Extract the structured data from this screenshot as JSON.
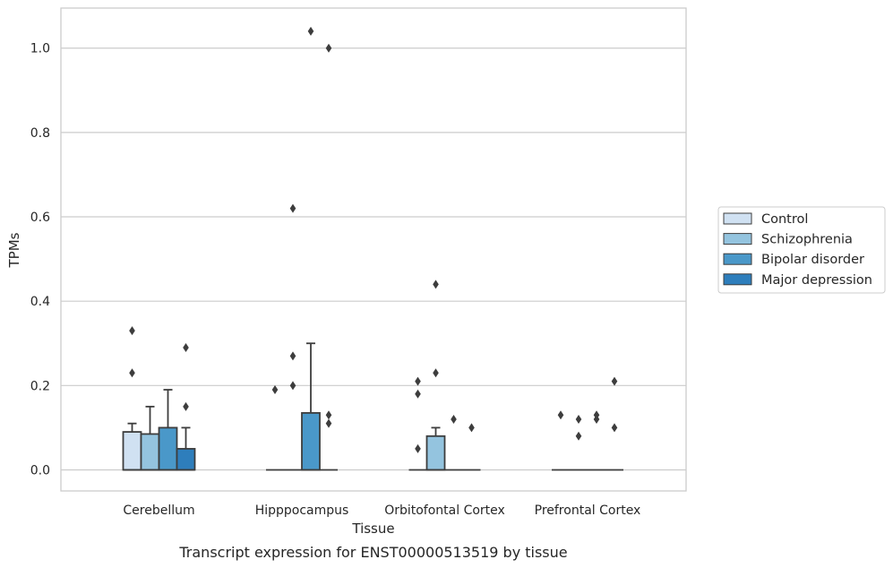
{
  "chart_data": {
    "type": "box",
    "title": "",
    "caption": "Transcript expression for ENST00000513519 by tissue",
    "xlabel": "Tissue",
    "ylabel": "TPMs",
    "ylim": [
      -0.05,
      1.095
    ],
    "yticks": [
      0.0,
      0.2,
      0.4,
      0.6,
      0.8,
      1.0
    ],
    "ytick_labels": [
      "0.0",
      "0.2",
      "0.4",
      "0.6",
      "0.8",
      "1.0"
    ],
    "grid": "horizontal",
    "legend_position": "right",
    "categories": [
      "Cerebellum",
      "Hipppocampus",
      "Orbitofontal Cortex",
      "Prefrontal Cortex"
    ],
    "series": [
      {
        "name": "Control",
        "color": "#d0e1f2",
        "boxes": [
          {
            "q1": 0.0,
            "median": 0.0,
            "q3": 0.09,
            "whisker_low": 0.0,
            "whisker_high": 0.11,
            "outliers": [
              0.23,
              0.33
            ]
          },
          {
            "q1": 0.0,
            "median": 0.0,
            "q3": 0.0,
            "whisker_low": 0.0,
            "whisker_high": 0.0,
            "outliers": [
              0.19
            ]
          },
          {
            "q1": 0.0,
            "median": 0.0,
            "q3": 0.0,
            "whisker_low": 0.0,
            "whisker_high": 0.0,
            "outliers": [
              0.05,
              0.18,
              0.21
            ]
          },
          {
            "q1": 0.0,
            "median": 0.0,
            "q3": 0.0,
            "whisker_low": 0.0,
            "whisker_high": 0.0,
            "outliers": [
              0.13
            ]
          }
        ]
      },
      {
        "name": "Schizophrenia",
        "color": "#94c4df",
        "boxes": [
          {
            "q1": 0.0,
            "median": 0.0,
            "q3": 0.085,
            "whisker_low": 0.0,
            "whisker_high": 0.15,
            "outliers": []
          },
          {
            "q1": 0.0,
            "median": 0.0,
            "q3": 0.0,
            "whisker_low": 0.0,
            "whisker_high": 0.0,
            "outliers": [
              0.2,
              0.27,
              0.62
            ]
          },
          {
            "q1": 0.0,
            "median": 0.0,
            "q3": 0.08,
            "whisker_low": 0.0,
            "whisker_high": 0.1,
            "outliers": [
              0.23,
              0.44
            ]
          },
          {
            "q1": 0.0,
            "median": 0.0,
            "q3": 0.0,
            "whisker_low": 0.0,
            "whisker_high": 0.0,
            "outliers": [
              0.08,
              0.12
            ]
          }
        ]
      },
      {
        "name": "Bipolar disorder",
        "color": "#4a98c9",
        "boxes": [
          {
            "q1": 0.0,
            "median": 0.0,
            "q3": 0.1,
            "whisker_low": 0.0,
            "whisker_high": 0.19,
            "outliers": []
          },
          {
            "q1": 0.0,
            "median": 0.0,
            "q3": 0.135,
            "whisker_low": 0.0,
            "whisker_high": 0.3,
            "outliers": [
              1.04
            ]
          },
          {
            "q1": 0.0,
            "median": 0.0,
            "q3": 0.0,
            "whisker_low": 0.0,
            "whisker_high": 0.0,
            "outliers": [
              0.12
            ]
          },
          {
            "q1": 0.0,
            "median": 0.0,
            "q3": 0.0,
            "whisker_low": 0.0,
            "whisker_high": 0.0,
            "outliers": [
              0.12,
              0.13
            ]
          }
        ]
      },
      {
        "name": "Major depression",
        "color": "#2e7ebc",
        "boxes": [
          {
            "q1": 0.0,
            "median": 0.0,
            "q3": 0.05,
            "whisker_low": 0.0,
            "whisker_high": 0.1,
            "outliers": [
              0.15,
              0.29
            ]
          },
          {
            "q1": 0.0,
            "median": 0.0,
            "q3": 0.0,
            "whisker_low": 0.0,
            "whisker_high": 0.0,
            "outliers": [
              0.11,
              0.13,
              1.0
            ]
          },
          {
            "q1": 0.0,
            "median": 0.0,
            "q3": 0.0,
            "whisker_low": 0.0,
            "whisker_high": 0.0,
            "outliers": [
              0.1
            ]
          },
          {
            "q1": 0.0,
            "median": 0.0,
            "q3": 0.0,
            "whisker_low": 0.0,
            "whisker_high": 0.0,
            "outliers": [
              0.1,
              0.21
            ]
          }
        ]
      }
    ]
  }
}
